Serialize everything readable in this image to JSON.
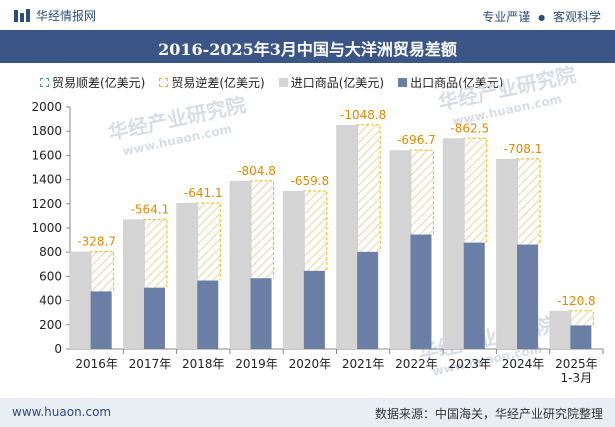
{
  "header": {
    "site_name": "华经情报网",
    "tagline_1": "专业严谨",
    "tagline_sep": "●",
    "tagline_2": "客观科学"
  },
  "footer": {
    "url": "www.huaon.com",
    "source": "数据来源：中国海关，华经产业研究院整理"
  },
  "watermark": {
    "cn": "华经产业研究院",
    "en": "www.huaon.com"
  },
  "colors": {
    "title_bar": "#3a5586",
    "import": "#d4d4d4",
    "export": "#6a7ea6",
    "deficit_border": "#f0b800",
    "deficit_label": "#e08a00",
    "surplus_border": "#4a90c8"
  },
  "chart_data": {
    "type": "bar",
    "title": "2016-2025年3月中国与大洋洲贸易差额",
    "categories": [
      "2016年",
      "2017年",
      "2018年",
      "2019年",
      "2020年",
      "2021年",
      "2022年",
      "2023年",
      "2024年",
      "2025年 1-3月"
    ],
    "category_lines": [
      [
        "2016年"
      ],
      [
        "2017年"
      ],
      [
        "2018年"
      ],
      [
        "2019年"
      ],
      [
        "2020年"
      ],
      [
        "2021年"
      ],
      [
        "2022年"
      ],
      [
        "2023年"
      ],
      [
        "2024年"
      ],
      [
        "2025年",
        "1-3月"
      ]
    ],
    "series": [
      {
        "name": "贸易顺差(亿美元)",
        "values": [
          null,
          null,
          null,
          null,
          null,
          null,
          null,
          null,
          null,
          null
        ]
      },
      {
        "name": "贸易逆差(亿美元)",
        "values": [
          -328.7,
          -564.1,
          -641.1,
          -804.8,
          -659.8,
          -1048.8,
          -696.7,
          -862.5,
          -708.1,
          -120.8
        ]
      },
      {
        "name": "进口商品(亿美元)",
        "values": [
          805,
          1071,
          1207,
          1390,
          1306,
          1852,
          1643,
          1742,
          1571,
          316
        ]
      },
      {
        "name": "出口商品(亿美元)",
        "values": [
          476,
          507,
          566,
          585,
          646,
          803,
          946,
          879,
          863,
          195
        ]
      }
    ],
    "deficit_labels": [
      "-328.7",
      "-564.1",
      "-641.1",
      "-804.8",
      "-659.8",
      "-1048.8",
      "-696.7",
      "-862.5",
      "-708.1",
      "-120.8"
    ],
    "ylim": [
      0,
      2000
    ],
    "yticks": [
      0,
      200,
      400,
      600,
      800,
      1000,
      1200,
      1400,
      1600,
      1800,
      2000
    ],
    "legend_position": "top",
    "grid": false
  }
}
